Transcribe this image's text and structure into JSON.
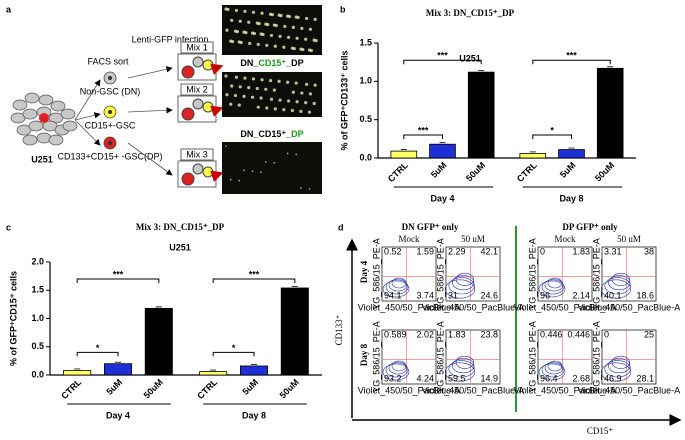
{
  "panel_labels": [
    "a",
    "b",
    "c",
    "d"
  ],
  "panel_a": {
    "cell_line": "U251",
    "steps": [
      "FACS sort",
      "Lenti-GFP infection"
    ],
    "populations": [
      "Non-GSC (DN)",
      "CD15+-GSC",
      "CD133+CD15+ -GSC(DP)"
    ],
    "mixes": [
      "Mix 1",
      "Mix 2",
      "Mix 3"
    ],
    "image_labels": [
      [
        "DN_",
        "CD15⁺",
        "_DP"
      ],
      [
        "DN_CD15⁺_",
        "DP"
      ]
    ]
  },
  "chart_data": [
    {
      "type": "grouped-bar",
      "title": "Mix 3: DN_CD15⁺_DP",
      "subtitle": "U251",
      "y_label": "% of GFP⁺CD133⁺ cells",
      "categories": [
        "CTRL",
        "5uM",
        "50uM"
      ],
      "colors": [
        "#ffff66",
        "#1f2fd6",
        "#000000"
      ],
      "groups": [
        {
          "name": "Day 4",
          "values": [
            0.09,
            0.18,
            1.12
          ],
          "significance": [
            "***",
            "***"
          ]
        },
        {
          "name": "Day 8",
          "values": [
            0.06,
            0.11,
            1.17
          ],
          "significance": [
            "*",
            "***"
          ]
        }
      ],
      "ylim": [
        0,
        1.5
      ],
      "yticks": [
        {
          "value": 0,
          "label": "0.0"
        },
        0.5,
        {
          "value": 1,
          "label": "1.0"
        },
        1.5
      ]
    },
    {
      "type": "grouped-bar",
      "title": "Mix 3: DN_CD15⁺_DP",
      "subtitle": "U251",
      "y_label": "% of GFP⁺CD15⁺ cells",
      "categories": [
        "CTRL",
        "5uM",
        "50uM"
      ],
      "colors": [
        "#ffff66",
        "#1f2fd6",
        "#000000"
      ],
      "groups": [
        {
          "name": "Day 4",
          "values": [
            0.08,
            0.2,
            1.18
          ],
          "significance": [
            "*",
            "***"
          ]
        },
        {
          "name": "Day 8",
          "values": [
            0.06,
            0.16,
            1.54
          ],
          "significance": [
            "*",
            "***"
          ]
        }
      ],
      "ylim": [
        0,
        2
      ],
      "yticks": [
        {
          "value": 0,
          "label": "0.0"
        },
        0.5,
        {
          "value": 1,
          "label": "1.0"
        },
        1.5,
        {
          "value": 2,
          "label": "2.0"
        }
      ]
    }
  ],
  "panel_d": {
    "headers": [
      "DN GFP⁺ only",
      "DP GFP⁺ only"
    ],
    "conditions": [
      "Mock",
      "50 uM"
    ],
    "days": [
      "Day 4",
      "Day 8"
    ],
    "y_axis": "CD133⁺",
    "x_axis": "CD15⁺",
    "plot_y_label": "YG_586/15_PE-A",
    "plot_x_label": "Violet_450/50_PacBlue-A",
    "plots": [
      [
        [
          0.52,
          1.59,
          94.1,
          3.74
        ],
        [
          2.29,
          42.1,
          31,
          24.6
        ],
        [
          0,
          1.83,
          96,
          2.14
        ],
        [
          3.31,
          38,
          40.1,
          18.6
        ]
      ],
      [
        [
          0.589,
          2.02,
          93.2,
          4.24
        ],
        [
          1.83,
          23.8,
          59.5,
          14.9
        ],
        [
          0.446,
          0.446,
          96.4,
          2.68
        ],
        [
          0,
          25,
          46.9,
          28.1
        ]
      ]
    ]
  }
}
